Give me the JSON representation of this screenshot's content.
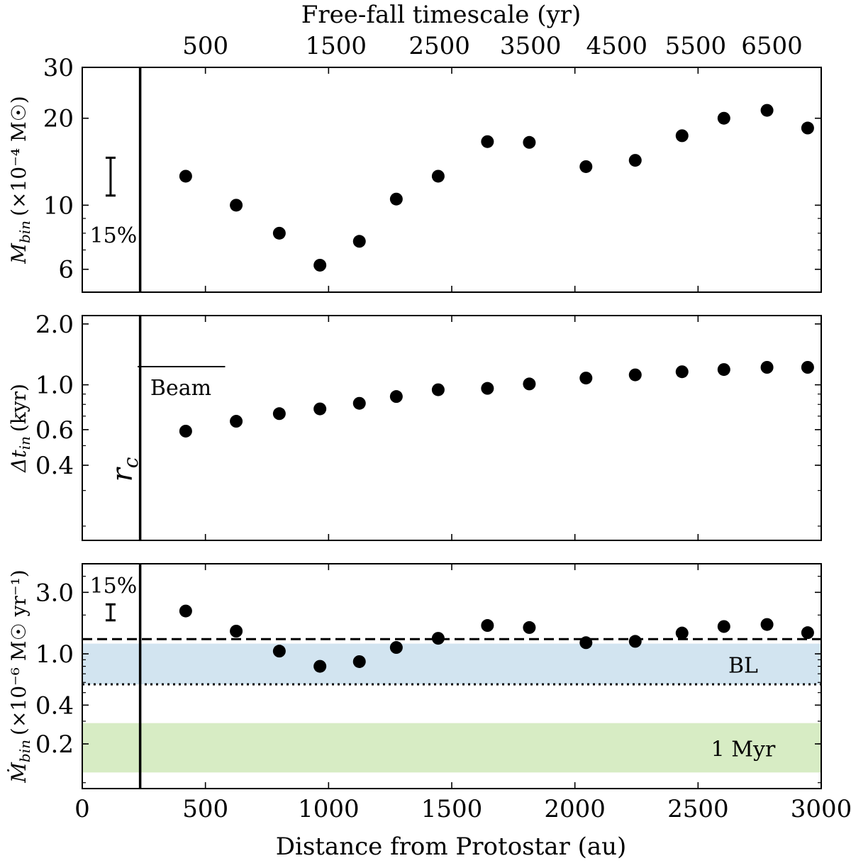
{
  "chart_data": [
    {
      "type": "scatter",
      "panel": "top",
      "ylabel_main": "M",
      "ylabel_sub": "bin",
      "ylabel_unit": "(×10⁻⁴ M☉)",
      "yscale": "log",
      "ylim": [
        5,
        30
      ],
      "yticks": [
        {
          "v": 6,
          "label": "6"
        },
        {
          "v": 10,
          "label": "10"
        },
        {
          "v": 20,
          "label": "20"
        },
        {
          "v": 30,
          "label": "30"
        }
      ],
      "x": [
        420,
        625,
        800,
        965,
        1125,
        1275,
        1445,
        1645,
        1815,
        2045,
        2245,
        2435,
        2605,
        2780,
        2945
      ],
      "y": [
        12.6,
        10.0,
        8.0,
        6.2,
        7.5,
        10.5,
        12.6,
        16.6,
        16.5,
        13.6,
        14.3,
        17.4,
        20.0,
        21.3,
        18.5
      ],
      "error_bar_label": "15%",
      "error_bar": {
        "x": 115,
        "center": 12.7,
        "low": 10.8,
        "high": 14.6
      }
    },
    {
      "type": "scatter",
      "panel": "middle",
      "ylabel_main": "Δt",
      "ylabel_sub": "in",
      "ylabel_unit": "(kyr)",
      "yscale": "log",
      "ylim": [
        0.17,
        2.2
      ],
      "yticks": [
        {
          "v": 0.4,
          "label": "0.4"
        },
        {
          "v": 0.6,
          "label": "0.6"
        },
        {
          "v": 1.0,
          "label": "1.0"
        },
        {
          "v": 2.0,
          "label": "2.0"
        }
      ],
      "x": [
        420,
        625,
        800,
        965,
        1125,
        1275,
        1445,
        1645,
        1815,
        2045,
        2245,
        2435,
        2605,
        2780,
        2945
      ],
      "y": [
        0.59,
        0.66,
        0.72,
        0.76,
        0.81,
        0.875,
        0.945,
        0.96,
        1.01,
        1.08,
        1.12,
        1.16,
        1.19,
        1.22,
        1.22
      ],
      "beam_label": "Beam",
      "beam_segment": {
        "x_start": 225,
        "x_end": 580,
        "y": 1.23
      },
      "rc_label": "r",
      "rc_sub": "c"
    },
    {
      "type": "scatter",
      "panel": "bottom",
      "ylabel_main": "Ṁ",
      "ylabel_sub": "bin",
      "ylabel_unit": "(×10⁻⁶ M☉ yr⁻¹)",
      "yscale": "log",
      "ylim": [
        0.09,
        5.0
      ],
      "yticks": [
        {
          "v": 0.2,
          "label": "0.2"
        },
        {
          "v": 0.4,
          "label": "0.4"
        },
        {
          "v": 1.0,
          "label": "1.0"
        },
        {
          "v": 3.0,
          "label": "3.0"
        }
      ],
      "x": [
        420,
        625,
        800,
        965,
        1125,
        1275,
        1445,
        1645,
        1815,
        2045,
        2245,
        2435,
        2605,
        2780,
        2945
      ],
      "y": [
        2.15,
        1.5,
        1.05,
        0.8,
        0.87,
        1.12,
        1.32,
        1.66,
        1.6,
        1.22,
        1.25,
        1.45,
        1.63,
        1.69,
        1.46
      ],
      "error_bar_label": "15%",
      "error_bar": {
        "x": 115,
        "center": 2.1,
        "low": 1.82,
        "high": 2.42
      },
      "dashed_line": 1.3,
      "dotted_line": 0.58,
      "bands": [
        {
          "label": "BL",
          "low": 0.58,
          "high": 1.2,
          "color": "#d2e4f0"
        },
        {
          "label": "1 Myr",
          "low": 0.12,
          "high": 0.29,
          "color": "#d7ecc4"
        }
      ]
    }
  ],
  "shared": {
    "xlabel": "Distance from Protostar (au)",
    "xlim": [
      0,
      3000
    ],
    "xticks": [
      {
        "v": 0,
        "label": "0"
      },
      {
        "v": 500,
        "label": "500"
      },
      {
        "v": 1000,
        "label": "1000"
      },
      {
        "v": 1500,
        "label": "1500"
      },
      {
        "v": 2000,
        "label": "2000"
      },
      {
        "v": 2500,
        "label": "2500"
      },
      {
        "v": 3000,
        "label": "3000"
      }
    ],
    "vline_x": 235,
    "top_axis_title": "Free-fall timescale (yr)",
    "top_ticks": [
      {
        "x": 500,
        "label": "500"
      },
      {
        "x": 1030,
        "label": "1500"
      },
      {
        "x": 1450,
        "label": "2500"
      },
      {
        "x": 1820,
        "label": "3500"
      },
      {
        "x": 2170,
        "label": "4500"
      },
      {
        "x": 2490,
        "label": "5500"
      },
      {
        "x": 2800,
        "label": "6500"
      }
    ]
  },
  "colors": {
    "marker": "#000000",
    "axis": "#000000"
  }
}
